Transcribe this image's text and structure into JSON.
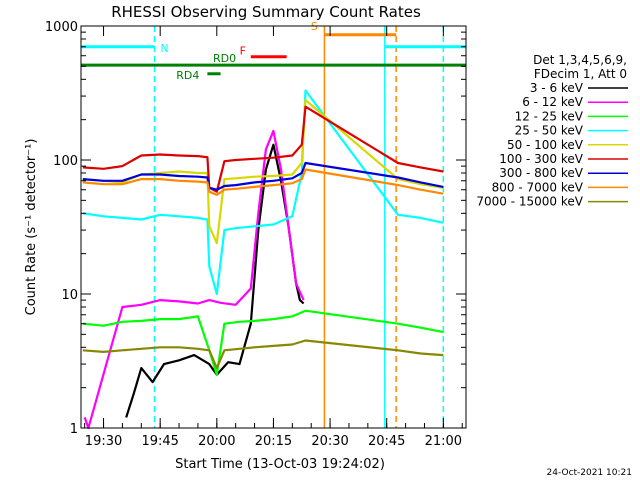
{
  "chart_data": {
    "type": "line",
    "title": "RHESSI Observing Summary Count Rates",
    "xlabel": "Start Time (13-Oct-03 19:24:02)",
    "ylabel": "Count Rate (s⁻¹ detector⁻¹)",
    "yscale": "log",
    "ylim": [
      1,
      1000
    ],
    "xlim_minutes_of_day": [
      1164.03,
      1266.0
    ],
    "x_ticks": [
      {
        "label": "19:30",
        "t": 1170
      },
      {
        "label": "19:45",
        "t": 1185
      },
      {
        "label": "20:00",
        "t": 1200
      },
      {
        "label": "20:15",
        "t": 1215
      },
      {
        "label": "20:30",
        "t": 1230
      },
      {
        "label": "20:45",
        "t": 1245
      },
      {
        "label": "21:00",
        "t": 1260
      }
    ],
    "y_ticks": [
      {
        "label": "1",
        "v": 1
      },
      {
        "label": "10",
        "v": 10
      },
      {
        "label": "100",
        "v": 100
      },
      {
        "label": "1000",
        "v": 1000
      }
    ],
    "legend": {
      "placement": "right",
      "header": [
        "Det 1,3,4,5,6,9,",
        "FDecim 1, Att 0"
      ]
    },
    "series": [
      {
        "name": "3 - 6 keV",
        "color": "#000000",
        "points": [
          [
            1176,
            1.2
          ],
          [
            1178,
            1.8
          ],
          [
            1180,
            2.8
          ],
          [
            1183,
            2.2
          ],
          [
            1186,
            3.0
          ],
          [
            1190,
            3.2
          ],
          [
            1194,
            3.5
          ],
          [
            1198,
            3.0
          ],
          [
            1200,
            2.5
          ],
          [
            1203,
            3.1
          ],
          [
            1206,
            3.0
          ],
          [
            1209,
            6.0
          ],
          [
            1211,
            30
          ],
          [
            1213,
            85
          ],
          [
            1215,
            130
          ],
          [
            1217,
            70
          ],
          [
            1219,
            32
          ],
          [
            1221,
            12
          ],
          [
            1222,
            9
          ],
          [
            1223,
            8.5
          ]
        ]
      },
      {
        "name": "6 - 12 keV",
        "color": "#ff00ff",
        "points": [
          [
            1165,
            1.2
          ],
          [
            1166,
            1.0
          ],
          [
            1175,
            8.0
          ],
          [
            1180,
            8.3
          ],
          [
            1185,
            9.0
          ],
          [
            1190,
            8.8
          ],
          [
            1195,
            8.5
          ],
          [
            1198,
            9.0
          ],
          [
            1201,
            8.6
          ],
          [
            1205,
            8.3
          ],
          [
            1209,
            11
          ],
          [
            1211,
            40
          ],
          [
            1213,
            120
          ],
          [
            1215,
            165
          ],
          [
            1217,
            85
          ],
          [
            1219,
            32
          ],
          [
            1221,
            12
          ],
          [
            1223,
            9
          ]
        ]
      },
      {
        "name": "12 - 25 keV",
        "color": "#00ff00",
        "points": [
          [
            1164.5,
            6.0
          ],
          [
            1170,
            5.8
          ],
          [
            1175,
            6.2
          ],
          [
            1180,
            6.3
          ],
          [
            1185,
            6.5
          ],
          [
            1190,
            6.5
          ],
          [
            1195,
            6.8
          ],
          [
            1198,
            3.8
          ],
          [
            1200,
            2.5
          ],
          [
            1202,
            6.0
          ],
          [
            1206,
            6.2
          ],
          [
            1210,
            6.3
          ],
          [
            1215,
            6.5
          ],
          [
            1220,
            6.8
          ],
          [
            1223.5,
            7.5
          ],
          [
            1248,
            6.0
          ],
          [
            1254,
            5.6
          ],
          [
            1260,
            5.2
          ]
        ]
      },
      {
        "name": "25 - 50 keV",
        "color": "#00ffff",
        "points": [
          [
            1164.5,
            40
          ],
          [
            1170,
            38
          ],
          [
            1175,
            37
          ],
          [
            1180,
            36
          ],
          [
            1185,
            39
          ],
          [
            1190,
            38
          ],
          [
            1195,
            37
          ],
          [
            1197.5,
            36
          ],
          [
            1198,
            16
          ],
          [
            1200,
            10
          ],
          [
            1202,
            30
          ],
          [
            1205,
            31
          ],
          [
            1210,
            32
          ],
          [
            1215,
            33
          ],
          [
            1220,
            38
          ],
          [
            1222.5,
            80
          ],
          [
            1223.5,
            330
          ],
          [
            1248,
            39
          ],
          [
            1254,
            37
          ],
          [
            1260,
            34
          ]
        ]
      },
      {
        "name": "50 - 100 keV",
        "color": "#d8d800",
        "points": [
          [
            1164.5,
            72
          ],
          [
            1170,
            70
          ],
          [
            1175,
            68
          ],
          [
            1180,
            78
          ],
          [
            1185,
            80
          ],
          [
            1190,
            82
          ],
          [
            1195,
            80
          ],
          [
            1197.5,
            80
          ],
          [
            1198,
            32
          ],
          [
            1200,
            24
          ],
          [
            1202,
            72
          ],
          [
            1205,
            73
          ],
          [
            1210,
            75
          ],
          [
            1215,
            76
          ],
          [
            1220,
            78
          ],
          [
            1222.5,
            95
          ],
          [
            1223.5,
            280
          ],
          [
            1248,
            72
          ],
          [
            1254,
            66
          ],
          [
            1260,
            62
          ]
        ]
      },
      {
        "name": "100 - 300 keV",
        "color": "#dd0000",
        "points": [
          [
            1164.5,
            88
          ],
          [
            1170,
            86
          ],
          [
            1175,
            90
          ],
          [
            1180,
            108
          ],
          [
            1185,
            110
          ],
          [
            1190,
            108
          ],
          [
            1195,
            107
          ],
          [
            1197.5,
            105
          ],
          [
            1198,
            62
          ],
          [
            1200,
            58
          ],
          [
            1202,
            98
          ],
          [
            1205,
            100
          ],
          [
            1210,
            102
          ],
          [
            1215,
            104
          ],
          [
            1220,
            108
          ],
          [
            1222.5,
            130
          ],
          [
            1223.5,
            250
          ],
          [
            1248,
            95
          ],
          [
            1254,
            88
          ],
          [
            1260,
            82
          ]
        ]
      },
      {
        "name": "300 - 800 keV",
        "color": "#0000dd",
        "points": [
          [
            1164.5,
            72
          ],
          [
            1170,
            70
          ],
          [
            1175,
            70
          ],
          [
            1180,
            78
          ],
          [
            1185,
            78
          ],
          [
            1190,
            76
          ],
          [
            1195,
            75
          ],
          [
            1197.5,
            74
          ],
          [
            1198,
            62
          ],
          [
            1200,
            60
          ],
          [
            1202,
            64
          ],
          [
            1205,
            65
          ],
          [
            1210,
            68
          ],
          [
            1215,
            70
          ],
          [
            1220,
            73
          ],
          [
            1222.5,
            80
          ],
          [
            1223.5,
            95
          ],
          [
            1248,
            74
          ],
          [
            1254,
            68
          ],
          [
            1260,
            63
          ]
        ]
      },
      {
        "name": "800 - 7000 keV",
        "color": "#ff8800",
        "points": [
          [
            1164.5,
            68
          ],
          [
            1170,
            66
          ],
          [
            1175,
            66
          ],
          [
            1180,
            72
          ],
          [
            1185,
            72
          ],
          [
            1190,
            70
          ],
          [
            1195,
            69
          ],
          [
            1197.5,
            68
          ],
          [
            1198,
            58
          ],
          [
            1200,
            55
          ],
          [
            1202,
            60
          ],
          [
            1205,
            61
          ],
          [
            1210,
            63
          ],
          [
            1215,
            65
          ],
          [
            1220,
            67
          ],
          [
            1222.5,
            72
          ],
          [
            1223.5,
            85
          ],
          [
            1248,
            65
          ],
          [
            1254,
            60
          ],
          [
            1260,
            56
          ]
        ]
      },
      {
        "name": "7000 - 15000 keV",
        "color": "#888800",
        "points": [
          [
            1164.5,
            3.8
          ],
          [
            1170,
            3.7
          ],
          [
            1175,
            3.8
          ],
          [
            1180,
            3.9
          ],
          [
            1185,
            4.0
          ],
          [
            1190,
            4.0
          ],
          [
            1195,
            3.9
          ],
          [
            1198,
            3.8
          ],
          [
            1200,
            2.8
          ],
          [
            1202,
            3.8
          ],
          [
            1206,
            3.9
          ],
          [
            1210,
            4.0
          ],
          [
            1215,
            4.1
          ],
          [
            1220,
            4.2
          ],
          [
            1223.5,
            4.5
          ],
          [
            1248,
            3.8
          ],
          [
            1254,
            3.6
          ],
          [
            1260,
            3.5
          ]
        ]
      }
    ],
    "flag_bars": [
      {
        "label": "N",
        "color": "#00ffff",
        "t_start": 1164.03,
        "t_end": 1183.5,
        "level": 700
      },
      {
        "label": "N",
        "color": "#00ffff",
        "t_start": 1244.5,
        "t_end": 1265.9,
        "level": 700
      },
      {
        "label": "S",
        "color": "#ff8800",
        "t_start": 1228.5,
        "t_end": 1247.5,
        "level": 860
      },
      {
        "label": "F",
        "color": "#ff0000",
        "t_start": 1209,
        "t_end": 1218.5,
        "level": 590
      },
      {
        "label": "RD0",
        "color": "#008000",
        "t_start": 1164.03,
        "t_end": 1265.9,
        "level": 510
      },
      {
        "label": "RD4",
        "color": "#008000",
        "t_start": 1197.5,
        "t_end": 1201,
        "level": 440
      }
    ],
    "vertical_markers": [
      {
        "t": 1183.5,
        "color": "#00ffff",
        "style": "dashed"
      },
      {
        "t": 1260.0,
        "color": "#00ffff",
        "style": "dashed"
      },
      {
        "t": 1244.5,
        "color": "#00ffff",
        "style": "solid"
      },
      {
        "t": 1228.5,
        "color": "#ff8800",
        "style": "solid"
      },
      {
        "t": 1247.5,
        "color": "#ff8800",
        "style": "dashed"
      }
    ]
  },
  "footer": {
    "date_stamp": "24-Oct-2021 10:21"
  }
}
